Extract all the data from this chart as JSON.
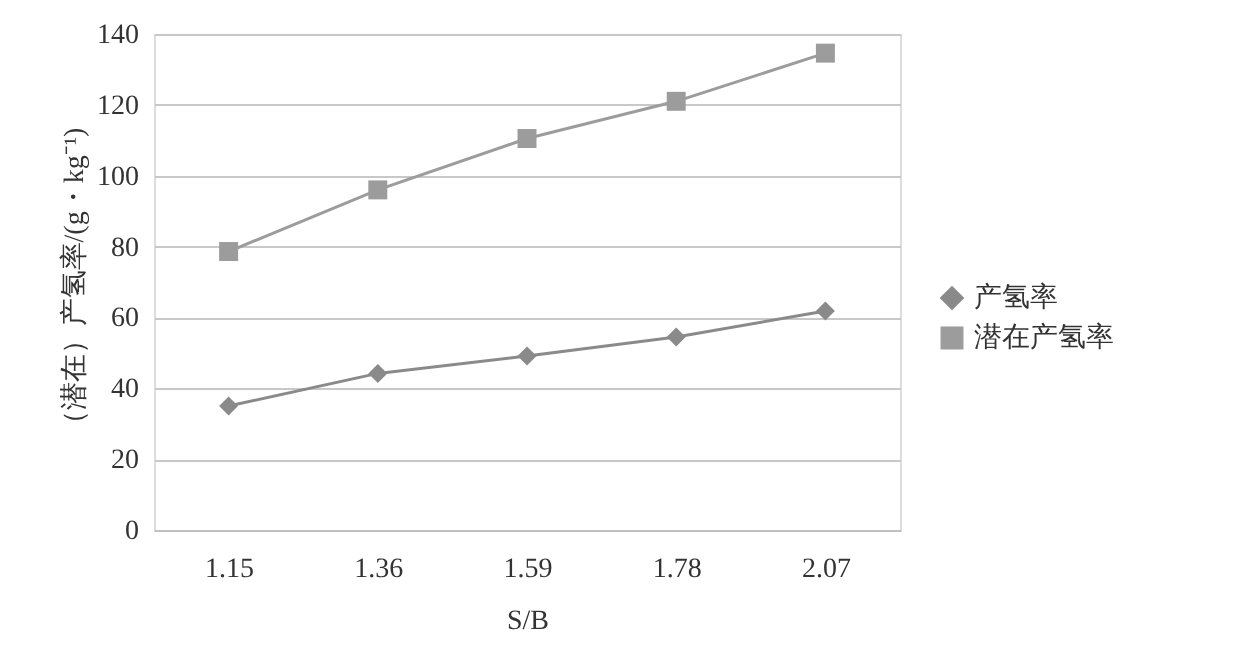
{
  "chart_data": {
    "type": "line",
    "xlabel": "S/B",
    "ylabel": "（潜在）产氢率/(g・kg⁻¹)",
    "categories": [
      "1.15",
      "1.36",
      "1.59",
      "1.78",
      "2.07"
    ],
    "series": [
      {
        "name": "产氢率",
        "color": "#8a8a8a",
        "marker": "diamond",
        "values": [
          35.0,
          44.2,
          49.1,
          54.5,
          61.8
        ]
      },
      {
        "name": "潜在产氢率",
        "color": "#9c9c9c",
        "marker": "square",
        "values": [
          78.6,
          96.0,
          110.5,
          121.0,
          134.6
        ]
      }
    ],
    "ylim": [
      0,
      140
    ],
    "yticks": [
      0,
      20,
      40,
      60,
      80,
      100,
      120,
      140
    ],
    "grid": "y",
    "legend": "right",
    "line_style": "solid"
  }
}
